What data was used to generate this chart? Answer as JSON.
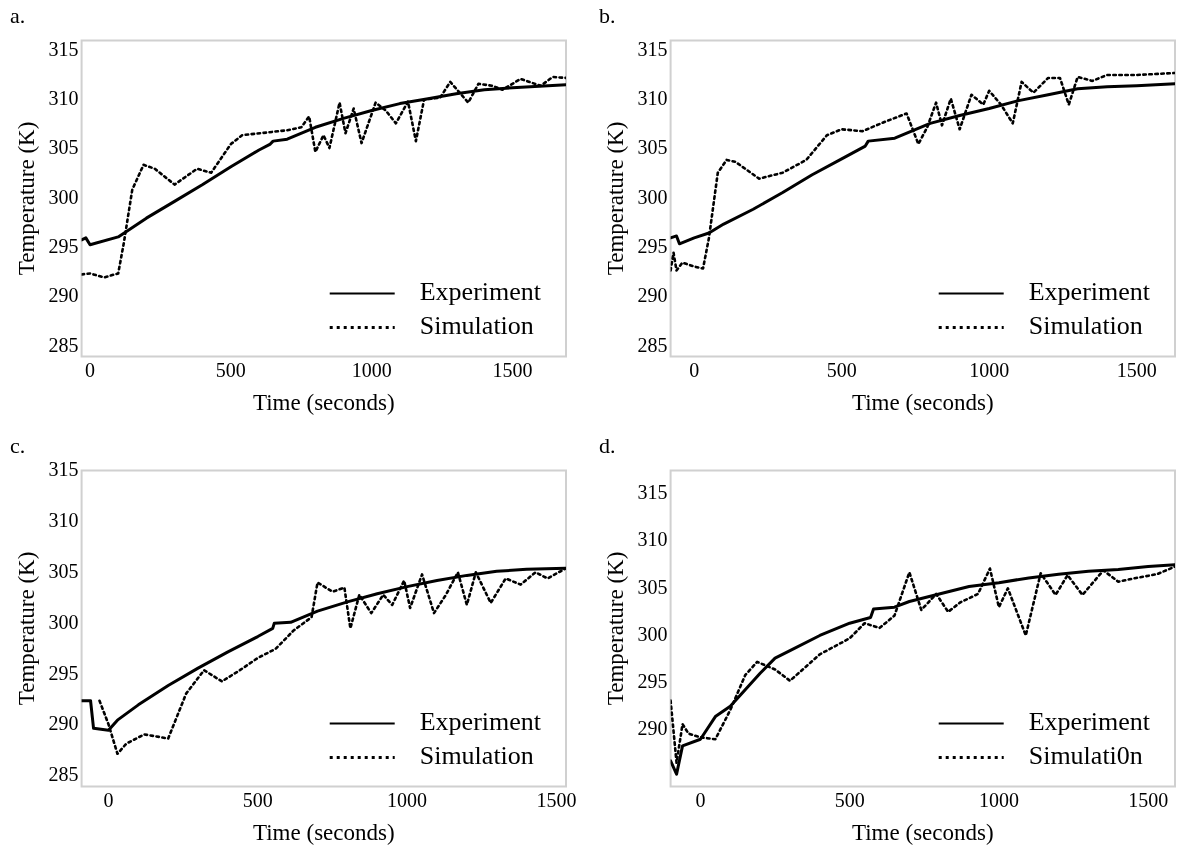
{
  "chart_data": [
    {
      "type": "line",
      "title": "a.",
      "xlabel": "Time (seconds)",
      "ylabel": "Temperature (K)",
      "xlim": [
        -30,
        1690
      ],
      "ylim": [
        284,
        316
      ],
      "xticks": [
        0,
        500,
        1000,
        1500
      ],
      "yticks": [
        285,
        290,
        295,
        300,
        305,
        310,
        315
      ],
      "grid": false,
      "legend": "bottom right",
      "series": [
        {
          "name": "Experiment",
          "color": "#000000",
          "line_style": "solid",
          "x": [
            -30,
            -15,
            0,
            100,
            200,
            300,
            400,
            500,
            600,
            640,
            650,
            700,
            800,
            900,
            1000,
            1100,
            1200,
            1300,
            1400,
            1500,
            1690
          ],
          "values": [
            295.8,
            296,
            295.3,
            296.1,
            298,
            299.7,
            301.4,
            303.2,
            304.9,
            305.5,
            305.8,
            306,
            307.2,
            308.1,
            308.9,
            309.6,
            310.1,
            310.6,
            311,
            311.2,
            311.5
          ]
        },
        {
          "name": "Simulation",
          "color": "#000000",
          "line_style": "dotted",
          "x": [
            -30,
            0,
            50,
            100,
            120,
            150,
            190,
            230,
            300,
            380,
            430,
            500,
            540,
            700,
            750,
            778,
            800,
            829,
            850,
            886,
            907,
            936,
            964,
            1014,
            1050,
            1086,
            1129,
            1157,
            1186,
            1243,
            1279,
            1343,
            1379,
            1429,
            1464,
            1529,
            1600,
            1643,
            1690
          ],
          "values": [
            292.3,
            292.4,
            292,
            292.4,
            295.5,
            300.9,
            303.4,
            303,
            301.4,
            303,
            302.6,
            305.5,
            306.4,
            306.9,
            307.2,
            308.3,
            304.7,
            306.4,
            305.1,
            309.7,
            306.6,
            309.1,
            305.6,
            309.7,
            308.9,
            307.6,
            309.8,
            305.8,
            310,
            310.2,
            311.8,
            309.7,
            311.6,
            311.4,
            311,
            312.1,
            311.4,
            312.3,
            312.2
          ]
        }
      ]
    },
    {
      "type": "line",
      "title": "b.",
      "xlabel": "Time (seconds)",
      "ylabel": "Temperature (K)",
      "xlim": [
        -80,
        1630
      ],
      "ylim": [
        284,
        316
      ],
      "xticks": [
        0,
        500,
        1000,
        1500
      ],
      "yticks": [
        285,
        290,
        295,
        300,
        305,
        310,
        315
      ],
      "grid": false,
      "legend": "bottom right",
      "series": [
        {
          "name": "Experiment",
          "color": "#000000",
          "line_style": "solid",
          "x": [
            -80,
            -60,
            -50,
            0,
            50,
            100,
            200,
            300,
            400,
            500,
            580,
            590,
            680,
            800,
            900,
            1000,
            1100,
            1200,
            1300,
            1400,
            1500,
            1630
          ],
          "values": [
            296,
            296.2,
            295.4,
            296,
            296.5,
            297.4,
            298.9,
            300.6,
            302.4,
            304,
            305.3,
            305.8,
            306.1,
            307.6,
            308.4,
            309.1,
            309.9,
            310.5,
            311.1,
            311.3,
            311.4,
            311.6
          ]
        },
        {
          "name": "Simulation",
          "color": "#000000",
          "line_style": "dotted",
          "x": [
            -80,
            -70,
            -60,
            -40,
            0,
            30,
            50,
            80,
            110,
            140,
            220,
            300,
            380,
            450,
            500,
            570,
            650,
            720,
            760,
            790,
            820,
            840,
            870,
            900,
            940,
            980,
            1000,
            1040,
            1080,
            1110,
            1150,
            1200,
            1240,
            1270,
            1300,
            1350,
            1400,
            1500,
            1630
          ],
          "values": [
            292.7,
            294.5,
            292.7,
            293.5,
            293.1,
            292.9,
            296,
            302.6,
            303.9,
            303.7,
            302,
            302.6,
            303.9,
            306.4,
            307,
            306.8,
            307.8,
            308.6,
            305.5,
            307.2,
            309.7,
            307.4,
            310.1,
            307,
            310.5,
            309.5,
            310.9,
            309.5,
            307.6,
            311.8,
            310.7,
            312.2,
            312.2,
            309.5,
            312.3,
            311.9,
            312.5,
            312.5,
            312.7
          ]
        }
      ]
    },
    {
      "type": "line",
      "title": "c.",
      "xlabel": "Time (seconds)",
      "ylabel": "Temperature (K)",
      "xlim": [
        -90,
        1532
      ],
      "ylim": [
        284,
        315
      ],
      "xticks": [
        0,
        500,
        1000,
        1500
      ],
      "yticks": [
        285,
        290,
        295,
        300,
        305,
        310,
        315
      ],
      "grid": false,
      "legend": "bottom right",
      "series": [
        {
          "name": "Experiment",
          "color": "#000000",
          "line_style": "solid",
          "x": [
            -90,
            -60,
            -50,
            0,
            30,
            100,
            200,
            300,
            400,
            500,
            550,
            555,
            610,
            700,
            800,
            900,
            1000,
            1100,
            1200,
            1300,
            1400,
            1532
          ],
          "values": [
            292.4,
            292.4,
            289.7,
            289.5,
            290.5,
            292,
            293.9,
            295.6,
            297.2,
            298.7,
            299.5,
            300,
            300.1,
            301.2,
            302.1,
            302.9,
            303.6,
            304.2,
            304.7,
            305.1,
            305.3,
            305.4
          ]
        },
        {
          "name": "Simulation",
          "color": "#000000",
          "line_style": "dotted",
          "x": [
            -30,
            0,
            30,
            60,
            120,
            200,
            260,
            320,
            380,
            440,
            500,
            560,
            620,
            680,
            700,
            750,
            790,
            810,
            840,
            880,
            920,
            950,
            990,
            1010,
            1050,
            1090,
            1130,
            1170,
            1200,
            1230,
            1280,
            1330,
            1380,
            1430,
            1470,
            1532
          ],
          "values": [
            292.4,
            290.1,
            287.2,
            288.2,
            289.1,
            288.7,
            293.1,
            295.4,
            294.3,
            295.4,
            296.6,
            297.5,
            299.3,
            300.6,
            304,
            303.1,
            303.5,
            299.5,
            302.8,
            301,
            302.8,
            301.8,
            304.2,
            301.5,
            304.8,
            301,
            302.8,
            305,
            301.8,
            305,
            302,
            304.4,
            303.8,
            305,
            304.4,
            305.4
          ]
        }
      ]
    },
    {
      "type": "line",
      "title": "d.",
      "xlabel": "Time (seconds)",
      "ylabel": "Temperature (K)",
      "xlim": [
        -100,
        1590
      ],
      "ylim": [
        284,
        317.5
      ],
      "xticks": [
        0,
        500,
        1000,
        1500
      ],
      "yticks": [
        290,
        295,
        300,
        305,
        310,
        315
      ],
      "grid": false,
      "legend": "bottom right",
      "series": [
        {
          "name": "Experiment",
          "color": "#000000",
          "line_style": "solid",
          "x": [
            -100,
            -80,
            -60,
            0,
            50,
            100,
            200,
            250,
            300,
            400,
            500,
            570,
            580,
            650,
            700,
            800,
            900,
            1000,
            1100,
            1200,
            1300,
            1400,
            1500,
            1590
          ],
          "values": [
            286.7,
            285.3,
            288.3,
            289,
            291.4,
            292.5,
            296,
            297.6,
            298.4,
            300,
            301.3,
            301.9,
            302.8,
            303,
            303.6,
            304.4,
            305.2,
            305.6,
            306.1,
            306.5,
            306.8,
            307,
            307.3,
            307.5
          ]
        },
        {
          "name": "Simulati0n",
          "color": "#000000",
          "line_style": "dotted",
          "x": [
            -100,
            -80,
            -60,
            -40,
            0,
            50,
            100,
            150,
            190,
            250,
            300,
            400,
            500,
            550,
            600,
            650,
            700,
            740,
            790,
            830,
            870,
            930,
            970,
            1000,
            1030,
            1090,
            1140,
            1190,
            1230,
            1280,
            1350,
            1400,
            1460,
            1530,
            1590
          ],
          "values": [
            293.1,
            286.5,
            290.6,
            289.6,
            289.2,
            289,
            292.1,
            295.8,
            297.2,
            296.4,
            295.2,
            298,
            299.7,
            301.3,
            300.8,
            302.1,
            306.7,
            302.7,
            304.4,
            302.5,
            303.5,
            304.4,
            307.1,
            303,
            305,
            300,
            306.6,
            304.3,
            306.4,
            304.3,
            306.9,
            305.7,
            306.1,
            306.5,
            307.3
          ]
        }
      ]
    }
  ]
}
